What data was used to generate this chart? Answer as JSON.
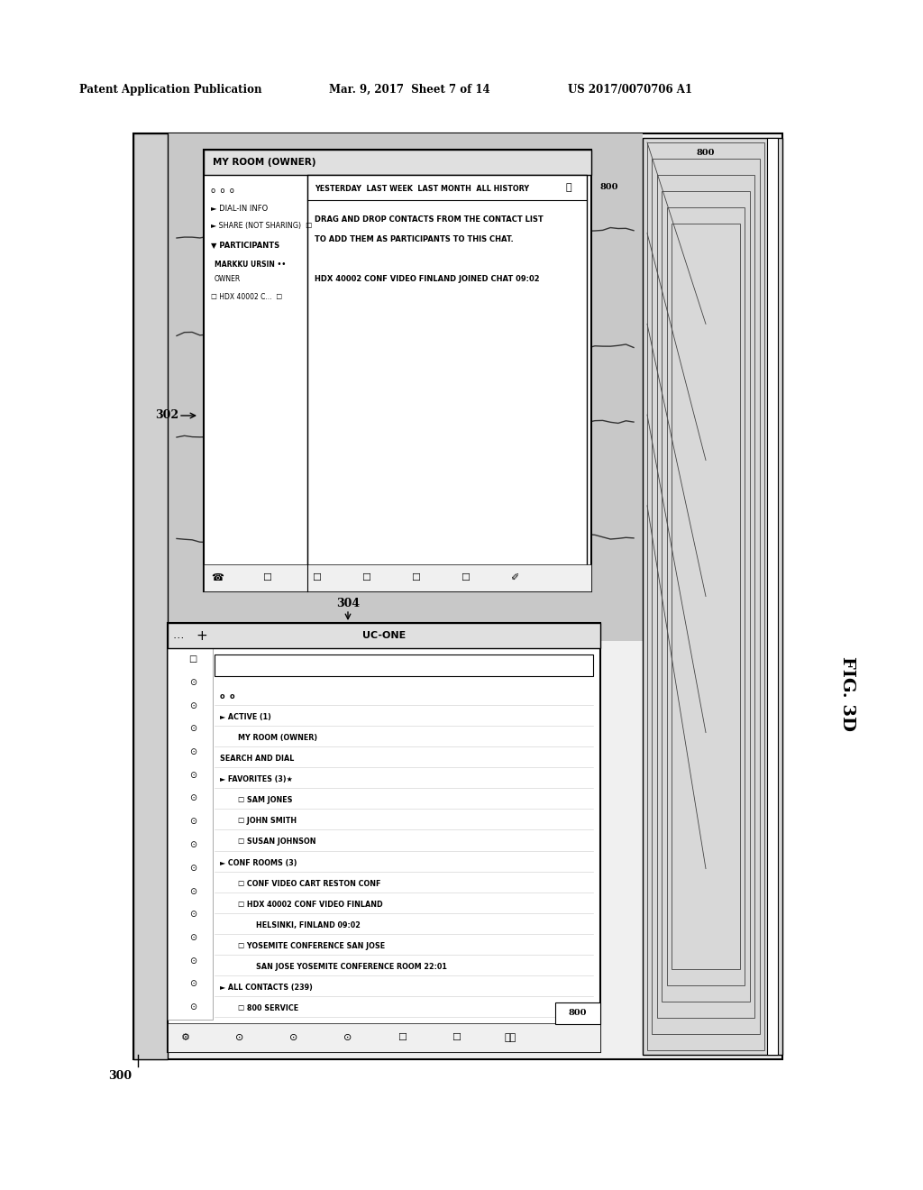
{
  "bg_color": "#ffffff",
  "header_text_left": "Patent Application Publication",
  "header_text_mid": "Mar. 9, 2017  Sheet 7 of 14",
  "header_text_right": "US 2017/0070706 A1",
  "fig_label": "FIG. 3D",
  "label_300": "300",
  "label_302": "302",
  "label_304": "304",
  "label_800_top": "800",
  "label_800_bot": "800",
  "uc_one_title": "UC-ONE",
  "uc_one_items": [
    "o  o",
    "► ACTIVE (1)",
    "   MY ROOM (OWNER)",
    "   SEARCH AND DIAL",
    "   ► FAVORITES (3)★",
    "   ☐ SAM JONES",
    "   ☐ JOHN SMITH",
    "   ☐ SUSAN JOHNSON",
    "   ► CONF ROOMS (3)",
    "   ☐ CONF VIDEO CART RESTON CONF",
    "   ☐ HDX 40002 CONF VIDEO FINLAND",
    "         HELSINKI, FINLAND 09:02",
    "   ☐ YOSEMITE CONFERENCE SAN JOSE",
    "         SAN JOSE YOSEMITE CONFERENCE ROOM 22:01",
    "   ► ALL CONTACTS (239)",
    "   ☐ 800 SERVICE"
  ],
  "myroom_title": "MY ROOM (OWNER)",
  "chat_lines": [
    "YESTERDAY  LAST WEEK  LAST MONTH  ALL HISTORY",
    "DRAG AND DROP CONTACTS FROM THE CONTACT LIST",
    "TO ADD THEM AS PARTICIPANTS TO THIS CHAT.",
    "HDX 40002 CONF VIDEO FINLAND JOINED CHAT 09:02"
  ],
  "info_lines": [
    "o  o  o",
    "► DIAL-IN INFO",
    "► SHARE (NOT SHARING)    ☐",
    "▼ PARTICIPANTS",
    "  MARKKU URSIN ••",
    "  OWNER",
    "  ☐ HDX 40002 C...  ☐  ☐"
  ],
  "myroom_bg": "#f0f0f0",
  "panel_bg": "#ffffff",
  "outer_bg": "#e8e8e8"
}
